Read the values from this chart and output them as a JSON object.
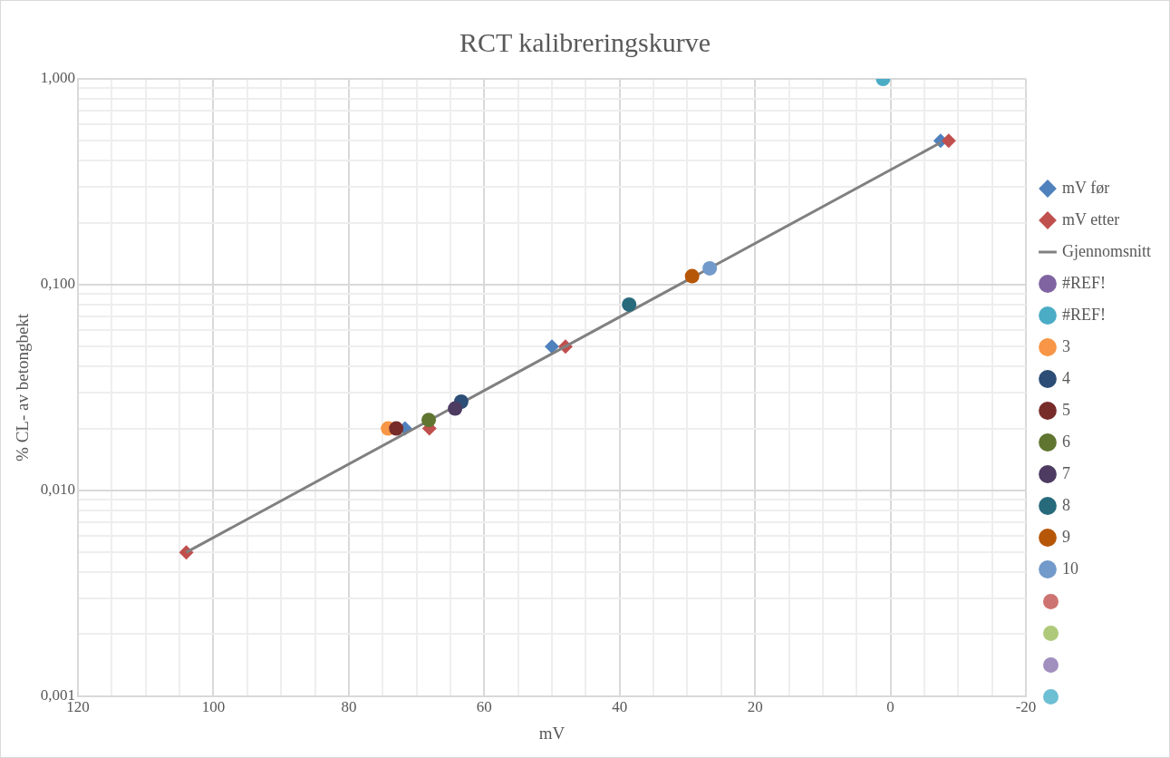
{
  "chart_data": {
    "type": "scatter",
    "title": "RCT kalibreringskurve",
    "xlabel": "mV",
    "ylabel": "% CL- av betongbekt",
    "log": "y",
    "grid": true,
    "legend": "right",
    "xlim": [
      120,
      -20
    ],
    "xticks": [
      120,
      {
        "value": 115,
        "label": null
      },
      {
        "value": 110,
        "label": null
      },
      {
        "value": 105,
        "label": null
      },
      100,
      {
        "value": 95,
        "label": null
      },
      {
        "value": 90,
        "label": null
      },
      {
        "value": 85,
        "label": null
      },
      80,
      {
        "value": 75,
        "label": null
      },
      {
        "value": 70,
        "label": null
      },
      {
        "value": 65,
        "label": null
      },
      60,
      {
        "value": 55,
        "label": null
      },
      {
        "value": 50,
        "label": null
      },
      {
        "value": 45,
        "label": null
      },
      40,
      {
        "value": 35,
        "label": null
      },
      {
        "value": 30,
        "label": null
      },
      {
        "value": 25,
        "label": null
      },
      20,
      {
        "value": 15,
        "label": null
      },
      {
        "value": 10,
        "label": null
      },
      {
        "value": 5,
        "label": null
      },
      0,
      {
        "value": -5,
        "label": null
      },
      {
        "value": -10,
        "label": null
      },
      {
        "value": -15,
        "label": null
      },
      -20
    ],
    "ylim": [
      0.001,
      1
    ],
    "yticks": [
      {
        "value": 0.001,
        "label": "0,001"
      },
      {
        "value": 0.002,
        "label": null
      },
      {
        "value": 0.003,
        "label": null
      },
      {
        "value": 0.004,
        "label": null
      },
      {
        "value": 0.005,
        "label": null
      },
      {
        "value": 0.006,
        "label": null
      },
      {
        "value": 0.007,
        "label": null
      },
      {
        "value": 0.008,
        "label": null
      },
      {
        "value": 0.009,
        "label": null
      },
      {
        "value": 0.01,
        "label": "0,010"
      },
      {
        "value": 0.02,
        "label": null
      },
      {
        "value": 0.03,
        "label": null
      },
      {
        "value": 0.04,
        "label": null
      },
      {
        "value": 0.05,
        "label": null
      },
      {
        "value": 0.06,
        "label": null
      },
      {
        "value": 0.07,
        "label": null
      },
      {
        "value": 0.08,
        "label": null
      },
      {
        "value": 0.09,
        "label": null
      },
      {
        "value": 0.1,
        "label": "0,100"
      },
      {
        "value": 0.2,
        "label": null
      },
      {
        "value": 0.3,
        "label": null
      },
      {
        "value": 0.4,
        "label": null
      },
      {
        "value": 0.5,
        "label": null
      },
      {
        "value": 0.6,
        "label": null
      },
      {
        "value": 0.7,
        "label": null
      },
      {
        "value": 0.8,
        "label": null
      },
      {
        "value": 0.9,
        "label": null
      },
      {
        "value": 1,
        "label": "1,000"
      }
    ],
    "series": [
      {
        "name": "mV før",
        "color": "#4f81bd",
        "marker": "diamond",
        "x": [
          71.7,
          50,
          -7.4
        ],
        "values": [
          0.02,
          0.05,
          0.5
        ]
      },
      {
        "name": "mV etter",
        "color": "#c0504d",
        "marker": "diamond",
        "x": [
          104,
          68.1,
          48,
          -8.6
        ],
        "values": [
          0.005,
          0.02,
          0.05,
          0.5
        ]
      },
      {
        "name": "Gjennomsnitt",
        "type": "line",
        "color": "#808080",
        "marker": "none",
        "x": [
          104,
          -7.4
        ],
        "values": [
          0.005,
          0.49
        ]
      },
      {
        "name": "#REF!",
        "color": "#8064a2",
        "marker": "circle"
      },
      {
        "name": "#REF!",
        "color": "#4bacc6",
        "marker": "circle",
        "x": [
          1.1
        ],
        "values": [
          1
        ]
      },
      {
        "name": "3",
        "color": "#f79646",
        "marker": "circle",
        "x": [
          74.2
        ],
        "values": [
          0.02
        ]
      },
      {
        "name": "4",
        "color": "#2c4d75",
        "marker": "circle",
        "x": [
          63.4
        ],
        "values": [
          0.027
        ]
      },
      {
        "name": "5",
        "color": "#772c2a",
        "marker": "circle",
        "x": [
          73
        ],
        "values": [
          0.02
        ]
      },
      {
        "name": "6",
        "color": "#5f7530",
        "marker": "circle",
        "x": [
          68.2
        ],
        "values": [
          0.022
        ]
      },
      {
        "name": "7",
        "color": "#4d3b62",
        "marker": "circle",
        "x": [
          64.3
        ],
        "values": [
          0.025
        ]
      },
      {
        "name": "8",
        "color": "#276a7c",
        "marker": "circle",
        "x": [
          38.6
        ],
        "values": [
          0.08
        ]
      },
      {
        "name": "9",
        "color": "#b65708",
        "marker": "circle",
        "x": [
          29.3
        ],
        "values": [
          0.11
        ]
      },
      {
        "name": "10",
        "color": "#729aca",
        "marker": "circle",
        "x": [
          26.7
        ],
        "values": [
          0.12
        ]
      },
      {
        "color": "#cd7371",
        "marker": "circle"
      },
      {
        "color": "#afc97a",
        "marker": "circle"
      },
      {
        "color": "#a18fbe",
        "marker": "circle"
      },
      {
        "color": "#6dbfd4",
        "marker": "circle"
      }
    ]
  }
}
